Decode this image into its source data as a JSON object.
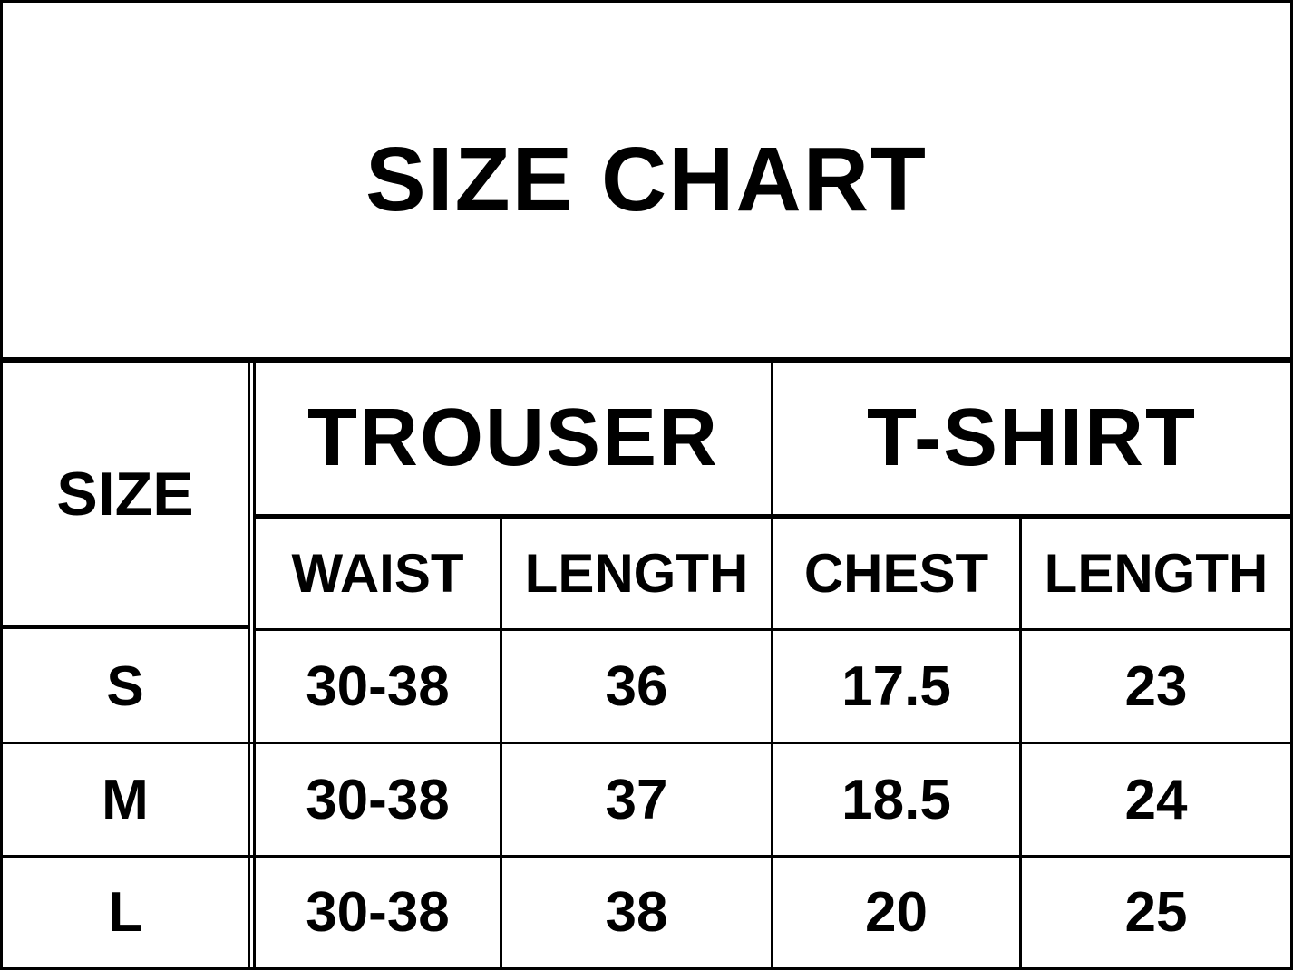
{
  "title": "SIZE CHART",
  "size_header": "SIZE",
  "groups": [
    {
      "label": "TROUSER",
      "columns": [
        "WAIST",
        "LENGTH"
      ]
    },
    {
      "label": "T-SHIRT",
      "columns": [
        "CHEST",
        "LENGTH"
      ]
    }
  ],
  "rows": [
    {
      "size": "S",
      "values": [
        "30-38",
        "36",
        "17.5",
        "23"
      ]
    },
    {
      "size": "M",
      "values": [
        "30-38",
        "37",
        "18.5",
        "24"
      ]
    },
    {
      "size": "L",
      "values": [
        "30-38",
        "38",
        "20",
        "25"
      ]
    }
  ]
}
